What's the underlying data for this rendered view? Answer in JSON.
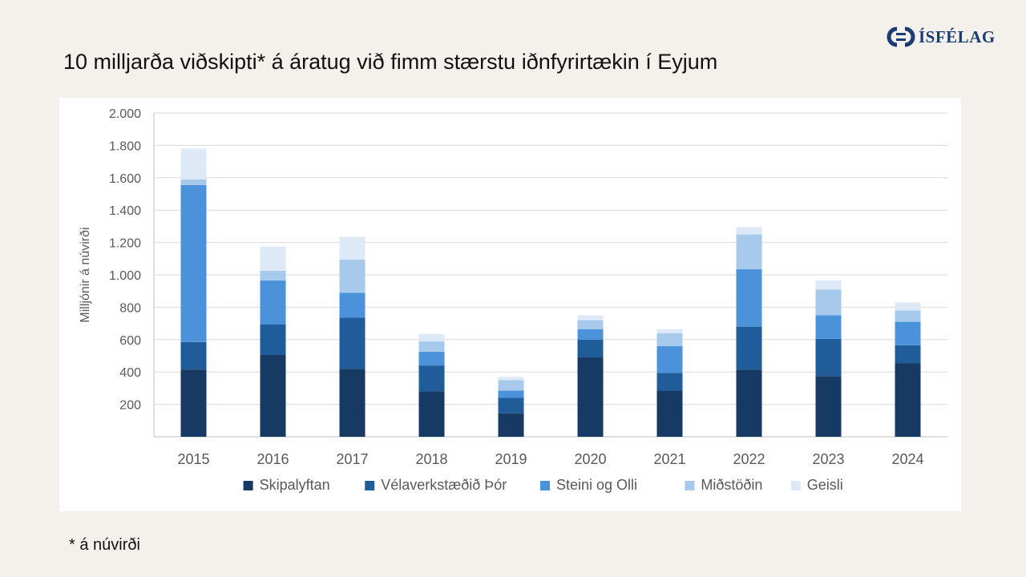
{
  "title": "10 milljarða viðskipti* á áratug við fimm stærstu iðnfyrirtækin í Eyjum",
  "logo": {
    "text": "ÍSFÉLAG"
  },
  "footnote": "* á núvirði",
  "chart_data": {
    "type": "bar",
    "stacked": true,
    "title": "",
    "xlabel": "",
    "ylabel": "Milljónir á núvirði",
    "ylim": [
      0,
      2000
    ],
    "yticks": [
      200,
      400,
      600,
      800,
      1000,
      1200,
      1400,
      1600,
      1800,
      2000
    ],
    "ytick_labels": [
      "200",
      "400",
      "600",
      "800",
      "1.000",
      "1.200",
      "1.400",
      "1.600",
      "1.800",
      "2.000"
    ],
    "grid": true,
    "legend_position": "bottom",
    "categories": [
      "2015",
      "2016",
      "2017",
      "2018",
      "2019",
      "2020",
      "2021",
      "2022",
      "2023",
      "2024"
    ],
    "series": [
      {
        "name": "Skipalyftan",
        "color": "#163a63",
        "values": [
          415,
          505,
          420,
          280,
          145,
          490,
          285,
          415,
          375,
          455
        ]
      },
      {
        "name": "Vélaverkstæðið Þór",
        "color": "#1f5c99",
        "values": [
          170,
          190,
          315,
          160,
          95,
          110,
          110,
          265,
          230,
          110
        ]
      },
      {
        "name": "Steini og Olli",
        "color": "#4c92da",
        "values": [
          970,
          270,
          155,
          85,
          45,
          65,
          165,
          355,
          145,
          145
        ]
      },
      {
        "name": "Miðstöðin",
        "color": "#a6c9ec",
        "values": [
          35,
          60,
          205,
          65,
          65,
          55,
          80,
          215,
          160,
          70
        ]
      },
      {
        "name": "Geisli",
        "color": "#dde9f6",
        "values": [
          190,
          150,
          140,
          45,
          20,
          30,
          25,
          45,
          55,
          50
        ]
      }
    ]
  }
}
